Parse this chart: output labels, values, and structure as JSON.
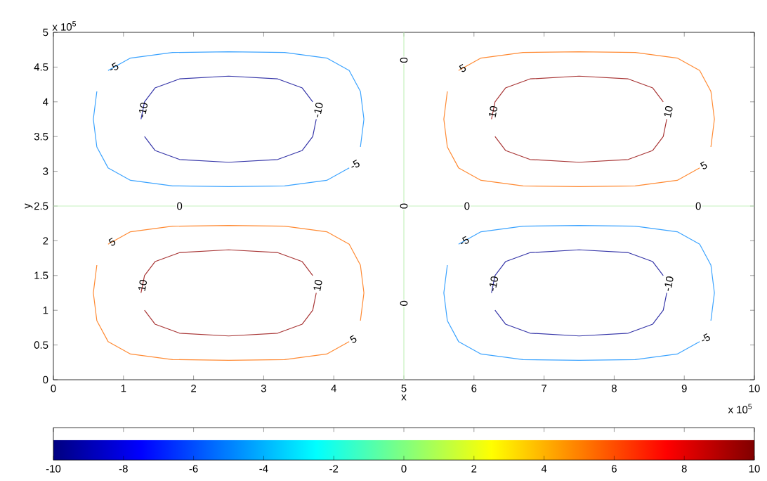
{
  "chart_data": {
    "type": "line",
    "xlabel": "x",
    "ylabel": "y",
    "annotations": [
      "x 10$^{5}$",
      "x 10$^{5}$"
    ],
    "xlim": [
      0,
      10
    ],
    "xticks": [
      0,
      1,
      2,
      3,
      4,
      5,
      6,
      7,
      8,
      9,
      10
    ],
    "ylim": [
      0,
      5
    ],
    "yticks": [
      0,
      0.5,
      1,
      1.5,
      2,
      2.5,
      3,
      3.5,
      4,
      4.5,
      5
    ],
    "clim": [
      -10,
      10
    ],
    "cticks": [
      -10,
      -8,
      -6,
      -4,
      -2,
      0,
      2,
      4,
      6,
      8,
      10
    ],
    "grid": false,
    "legend": false,
    "marker": "none",
    "line_style": "solid",
    "series": [
      {
        "name": "0",
        "color": "#c6f2bd",
        "x": [
          0,
          10
        ],
        "values": [
          2.5,
          2.5
        ]
      },
      {
        "name": "0",
        "color": "#c6f2bd",
        "x": [
          5,
          5
        ],
        "values": [
          0,
          5
        ]
      },
      {
        "name": "-5",
        "color": "#3ba3ff",
        "x": [
          0.62,
          0.57,
          0.62,
          0.78,
          1.1,
          1.7,
          2.5,
          3.3,
          3.9,
          4.22
        ],
        "values": [
          4.15,
          3.75,
          3.35,
          3.05,
          2.87,
          2.79,
          2.78,
          2.79,
          2.87,
          3.05
        ]
      },
      {
        "name": "-5",
        "color": "#3ba3ff",
        "x": [
          4.38,
          4.43,
          4.38,
          4.22,
          3.9,
          3.3,
          2.5,
          1.7,
          1.1,
          0.78
        ],
        "values": [
          3.35,
          3.75,
          4.15,
          4.45,
          4.63,
          4.71,
          4.72,
          4.71,
          4.63,
          4.45
        ]
      },
      {
        "name": "-10",
        "color": "#3535a8",
        "x": [
          3.7,
          3.55,
          3.2,
          2.5,
          1.8,
          1.45,
          1.3,
          1.25
        ],
        "values": [
          4.0,
          4.2,
          4.33,
          4.37,
          4.33,
          4.2,
          4.0,
          3.75
        ]
      },
      {
        "name": "-10",
        "color": "#3535a8",
        "x": [
          1.3,
          1.45,
          1.8,
          2.5,
          3.2,
          3.55,
          3.7,
          3.75
        ],
        "values": [
          3.5,
          3.3,
          3.17,
          3.13,
          3.17,
          3.3,
          3.5,
          3.75
        ]
      },
      {
        "name": "5",
        "color": "#ff8a33",
        "x": [
          5.62,
          5.57,
          5.62,
          5.78,
          6.1,
          6.7,
          7.5,
          8.3,
          8.9,
          9.22
        ],
        "values": [
          4.15,
          3.75,
          3.35,
          3.05,
          2.87,
          2.79,
          2.78,
          2.79,
          2.87,
          3.05
        ]
      },
      {
        "name": "5",
        "color": "#ff8a33",
        "x": [
          9.38,
          9.43,
          9.38,
          9.22,
          8.9,
          8.3,
          7.5,
          6.7,
          6.1,
          5.78
        ],
        "values": [
          3.35,
          3.75,
          4.15,
          4.45,
          4.63,
          4.71,
          4.72,
          4.71,
          4.63,
          4.45
        ]
      },
      {
        "name": "10",
        "color": "#a83535",
        "x": [
          8.7,
          8.55,
          8.2,
          7.5,
          6.8,
          6.45,
          6.3,
          6.25
        ],
        "values": [
          4.0,
          4.2,
          4.33,
          4.37,
          4.33,
          4.2,
          4.0,
          3.75
        ]
      },
      {
        "name": "10",
        "color": "#a83535",
        "x": [
          6.3,
          6.45,
          6.8,
          7.5,
          8.2,
          8.55,
          8.7,
          8.75
        ],
        "values": [
          3.5,
          3.3,
          3.17,
          3.13,
          3.17,
          3.3,
          3.5,
          3.75
        ]
      },
      {
        "name": "5",
        "color": "#ff8a33",
        "x": [
          0.62,
          0.57,
          0.62,
          0.78,
          1.1,
          1.7,
          2.5,
          3.3,
          3.9,
          4.22
        ],
        "values": [
          1.65,
          1.25,
          0.85,
          0.55,
          0.37,
          0.29,
          0.28,
          0.29,
          0.37,
          0.55
        ]
      },
      {
        "name": "5",
        "color": "#ff8a33",
        "x": [
          4.38,
          4.43,
          4.38,
          4.22,
          3.9,
          3.3,
          2.5,
          1.7,
          1.1,
          0.78
        ],
        "values": [
          0.85,
          1.25,
          1.65,
          1.95,
          2.13,
          2.21,
          2.22,
          2.21,
          2.13,
          1.95
        ]
      },
      {
        "name": "10",
        "color": "#a83535",
        "x": [
          3.7,
          3.55,
          3.2,
          2.5,
          1.8,
          1.45,
          1.3,
          1.25
        ],
        "values": [
          1.5,
          1.7,
          1.83,
          1.87,
          1.83,
          1.7,
          1.5,
          1.25
        ]
      },
      {
        "name": "10",
        "color": "#a83535",
        "x": [
          1.3,
          1.45,
          1.8,
          2.5,
          3.2,
          3.55,
          3.7,
          3.75
        ],
        "values": [
          1.0,
          0.8,
          0.67,
          0.63,
          0.67,
          0.8,
          1.0,
          1.25
        ]
      },
      {
        "name": "-5",
        "color": "#3ba3ff",
        "x": [
          5.62,
          5.57,
          5.62,
          5.78,
          6.1,
          6.7,
          7.5,
          8.3,
          8.9,
          9.22
        ],
        "values": [
          1.65,
          1.25,
          0.85,
          0.55,
          0.37,
          0.29,
          0.28,
          0.29,
          0.37,
          0.55
        ]
      },
      {
        "name": "-5",
        "color": "#3ba3ff",
        "x": [
          9.38,
          9.43,
          9.38,
          9.22,
          8.9,
          8.3,
          7.5,
          6.7,
          6.1,
          5.78
        ],
        "values": [
          0.85,
          1.25,
          1.65,
          1.95,
          2.13,
          2.21,
          2.22,
          2.21,
          2.13,
          1.95
        ]
      },
      {
        "name": "-10",
        "color": "#3535a8",
        "x": [
          8.7,
          8.55,
          8.2,
          7.5,
          6.8,
          6.45,
          6.3,
          6.25
        ],
        "values": [
          1.5,
          1.7,
          1.83,
          1.87,
          1.83,
          1.7,
          1.5,
          1.25
        ]
      },
      {
        "name": "-10",
        "color": "#3535a8",
        "x": [
          6.3,
          6.45,
          6.8,
          7.5,
          8.2,
          8.55,
          8.7,
          8.75
        ],
        "values": [
          1.0,
          0.8,
          0.67,
          0.63,
          0.67,
          0.8,
          1.0,
          1.25
        ]
      }
    ]
  }
}
